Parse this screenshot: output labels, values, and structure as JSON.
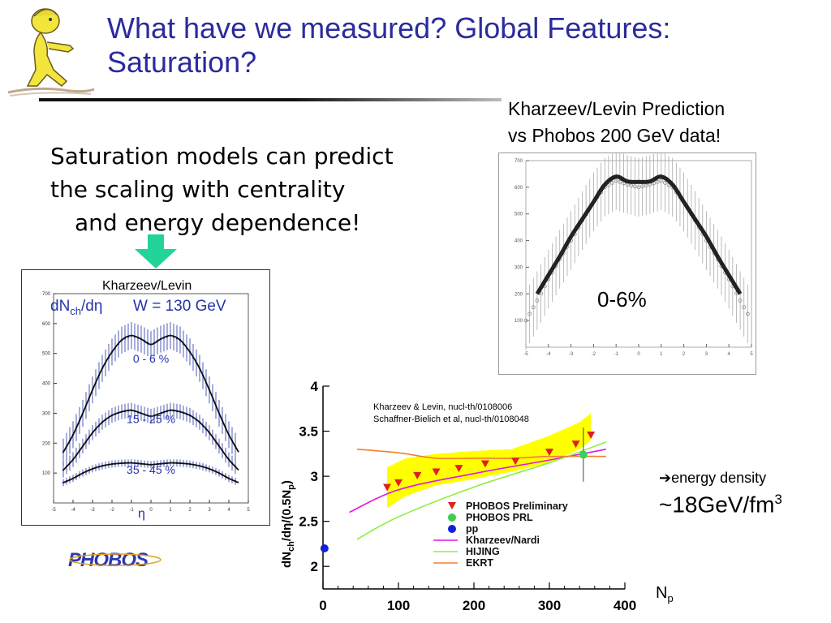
{
  "slide": {
    "title_line1": "What have we measured? Global Features:",
    "title_line2": "Saturation?",
    "bullet_lines": [
      "Saturation models can predict",
      "the scaling with centrality",
      "and energy dependence!"
    ],
    "right_note_line1": "Kharzeev/Levin Prediction",
    "right_note_line2": "vs Phobos 200 GeV data!",
    "energy_line1": "energy density",
    "energy_line2_prefix": "~18GeV/fm",
    "energy_line2_sup": "3",
    "logo_text": "PHOBOS",
    "colors": {
      "title": "#2b2b9e",
      "arrow": "#22d39a",
      "yellow_band": "#ffff00",
      "phobos_prelim": "#e0201f",
      "phobos_prl": "#3bcf55",
      "pp": "#1020e0",
      "kharzeev_nardi": "#e018e0",
      "hijing": "#90ee40",
      "ekrt": "#f08030",
      "plot_blue": "#2233aa"
    }
  },
  "chart_data": [
    {
      "type": "line",
      "label": "Kharzeev/Levin",
      "title_left": "dN",
      "title_sub": "ch",
      "title_right": "/dη",
      "energy": "W = 130 GeV",
      "xlabel": "η",
      "xlim": [
        -5,
        5
      ],
      "ylim": [
        0,
        700
      ],
      "xticks": [
        "-5",
        "-4",
        "-3",
        "-2",
        "-1",
        "0",
        "1",
        "2",
        "3",
        "4",
        "5"
      ],
      "yticks": [
        "100",
        "200",
        "300",
        "400",
        "500",
        "600",
        "700"
      ],
      "series": [
        {
          "name": "0 - 6 %",
          "x": [
            -4.5,
            -4,
            -3.5,
            -3,
            -2.5,
            -2,
            -1.5,
            -1,
            -0.5,
            0,
            0.5,
            1,
            1.5,
            2,
            2.5,
            3,
            3.5,
            4,
            4.5
          ],
          "values": [
            170,
            228,
            300,
            378,
            450,
            505,
            545,
            560,
            548,
            530,
            548,
            560,
            545,
            505,
            450,
            378,
            300,
            228,
            170
          ]
        },
        {
          "name": "15 - 25 %",
          "x": [
            -4.5,
            -4,
            -3.5,
            -3,
            -2.5,
            -2,
            -1.5,
            -1,
            -0.5,
            0,
            0.5,
            1,
            1.5,
            2,
            2.5,
            3,
            3.5,
            4,
            4.5
          ],
          "values": [
            110,
            145,
            190,
            235,
            270,
            293,
            305,
            310,
            300,
            290,
            300,
            310,
            305,
            293,
            270,
            235,
            190,
            145,
            110
          ]
        },
        {
          "name": "35 - 45 %",
          "x": [
            -4.5,
            -4,
            -3.5,
            -3,
            -2.5,
            -2,
            -1.5,
            -1,
            -0.5,
            0,
            0.5,
            1,
            1.5,
            2,
            2.5,
            3,
            3.5,
            4,
            4.5
          ],
          "values": [
            68,
            82,
            100,
            114,
            124,
            130,
            133,
            134,
            131,
            128,
            131,
            134,
            133,
            130,
            124,
            114,
            100,
            82,
            68
          ]
        }
      ]
    },
    {
      "type": "line",
      "label": "0-6%",
      "xlim": [
        -5,
        5
      ],
      "ylim": [
        0,
        700
      ],
      "xticks": [
        "-5",
        "-4",
        "-3",
        "-2",
        "-1",
        "0",
        "1",
        "2",
        "3",
        "4",
        "5"
      ],
      "yticks": [
        "100",
        "200",
        "300",
        "400",
        "500",
        "600",
        "700"
      ],
      "series": [
        {
          "name": "prediction",
          "x": [
            -4.5,
            -4,
            -3.5,
            -3,
            -2.5,
            -2,
            -1.5,
            -1,
            -0.5,
            0,
            0.5,
            1,
            1.5,
            2,
            2.5,
            3,
            3.5,
            4,
            4.5
          ],
          "values": [
            200,
            270,
            340,
            415,
            480,
            545,
            610,
            640,
            622,
            620,
            622,
            640,
            610,
            545,
            480,
            415,
            340,
            270,
            200
          ]
        },
        {
          "name": "data",
          "x": [
            -5,
            -4.5,
            -4,
            -3.5,
            -3,
            -2.5,
            -2,
            -1.5,
            -1,
            -0.5,
            0,
            0.5,
            1,
            1.5,
            2,
            2.5,
            3,
            3.5,
            4,
            4.5,
            5
          ],
          "values": [
            100,
            175,
            255,
            330,
            400,
            475,
            545,
            600,
            625,
            610,
            600,
            610,
            625,
            600,
            545,
            475,
            400,
            330,
            255,
            175,
            100
          ]
        }
      ]
    },
    {
      "type": "scatter",
      "xlabel": "N",
      "xlabel_sub": "p",
      "ylabel": "dNch/dη/(0.5Np)",
      "xlim": [
        0,
        400
      ],
      "ylim": [
        1.75,
        4.0
      ],
      "xticks": [
        "0",
        "100",
        "200",
        "300",
        "400"
      ],
      "yticks": [
        "2",
        "2.5",
        "3",
        "3.5",
        "4"
      ],
      "refs": [
        "Kharzeev & Levin, nucl-th/0108006",
        "Schaffner-Bielich et al, nucl-th/0108048"
      ],
      "legend": [
        "PHOBOS Preliminary",
        "PHOBOS PRL",
        "pp",
        "Kharzeev/Nardi",
        "HIJING",
        "EKRT"
      ],
      "band": {
        "x": [
          85,
          110,
          150,
          200,
          250,
          300,
          340,
          355
        ],
        "lower": [
          2.65,
          2.78,
          2.9,
          2.97,
          3.05,
          3.15,
          3.3,
          3.4
        ],
        "upper": [
          3.1,
          3.2,
          3.25,
          3.28,
          3.3,
          3.45,
          3.6,
          3.7
        ]
      },
      "phobos_preliminary": {
        "x": [
          85,
          100,
          125,
          150,
          180,
          215,
          255,
          300,
          335,
          355
        ],
        "y": [
          2.88,
          2.93,
          3.01,
          3.05,
          3.09,
          3.14,
          3.17,
          3.27,
          3.36,
          3.46
        ]
      },
      "phobos_prl": {
        "x": [
          345
        ],
        "y": [
          3.24
        ],
        "err": 0.3
      },
      "pp": {
        "x": [
          2
        ],
        "y": [
          2.2
        ]
      },
      "kharzeev_nardi": {
        "x": [
          35,
          100,
          200,
          300,
          375
        ],
        "y": [
          2.6,
          2.85,
          3.03,
          3.18,
          3.3
        ]
      },
      "hijing": {
        "x": [
          45,
          100,
          200,
          300,
          375
        ],
        "y": [
          2.3,
          2.55,
          2.88,
          3.15,
          3.38
        ]
      },
      "ekrt": {
        "x": [
          45,
          100,
          150,
          200,
          250,
          300,
          375
        ],
        "y": [
          3.3,
          3.26,
          3.2,
          3.2,
          3.2,
          3.22,
          3.22
        ]
      }
    }
  ]
}
